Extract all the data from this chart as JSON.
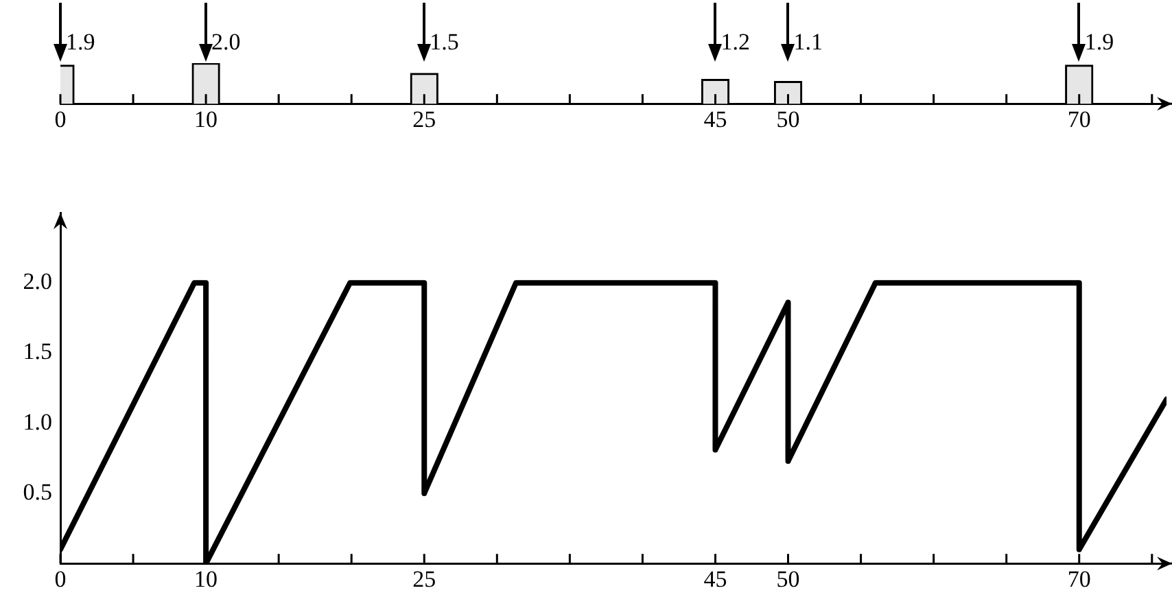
{
  "chart_data": [
    {
      "type": "bar",
      "x": [
        0,
        10,
        25,
        45,
        50,
        70
      ],
      "values": [
        1.9,
        2.0,
        1.5,
        1.2,
        1.1,
        1.9
      ],
      "value_labels": [
        "1.9",
        "2.0",
        "1.5",
        "1.2",
        "1.1",
        "1.9"
      ],
      "color": "#e6e6e6",
      "xlim": [
        0,
        76
      ],
      "xticks": [
        0,
        {
          "value": 5,
          "label": null
        },
        10,
        {
          "value": 15,
          "label": null
        },
        {
          "value": 20,
          "label": null
        },
        25,
        {
          "value": 30,
          "label": null
        },
        {
          "value": 35,
          "label": null
        },
        {
          "value": 40,
          "label": null
        },
        45,
        50,
        {
          "value": 55,
          "label": null
        },
        {
          "value": 60,
          "label": null
        },
        {
          "value": 65,
          "label": null
        },
        70,
        {
          "value": 75,
          "label": null
        }
      ]
    },
    {
      "type": "line",
      "x": [
        0,
        9.2,
        10,
        10,
        19.9,
        25,
        25,
        31.3,
        45,
        45,
        50,
        50,
        56,
        70,
        70,
        76
      ],
      "values": [
        0.1,
        2.0,
        2.0,
        0.0,
        2.0,
        2.0,
        0.5,
        2.0,
        2.0,
        0.81,
        1.86,
        0.73,
        2.0,
        2.0,
        0.1,
        1.17
      ],
      "color": "#000000",
      "xlim": [
        0,
        76
      ],
      "ylim": [
        0,
        2.5
      ],
      "xticks": [
        0,
        {
          "value": 5,
          "label": null
        },
        10,
        {
          "value": 15,
          "label": null
        },
        {
          "value": 20,
          "label": null
        },
        25,
        {
          "value": 30,
          "label": null
        },
        {
          "value": 35,
          "label": null
        },
        {
          "value": 40,
          "label": null
        },
        45,
        50,
        {
          "value": 55,
          "label": null
        },
        {
          "value": 60,
          "label": null
        },
        {
          "value": 65,
          "label": null
        },
        70,
        {
          "value": 75,
          "label": null
        }
      ],
      "yticks": [
        0.5,
        {
          "value": 1,
          "label": "1.0"
        },
        1.5,
        {
          "value": 2,
          "label": "2.0"
        }
      ],
      "grid": false,
      "legend": false,
      "marker": "none",
      "line_style": "solid"
    }
  ]
}
